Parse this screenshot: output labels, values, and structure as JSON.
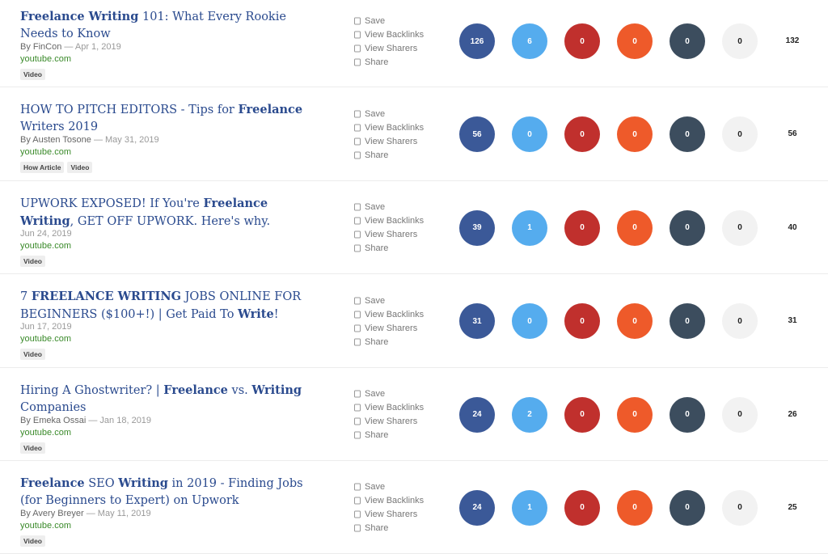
{
  "actions": [
    "Save",
    "View Backlinks",
    "View Sharers",
    "Share"
  ],
  "share_colors": [
    "#3b5998",
    "#55acee",
    "#c0302d",
    "#ee5a2a",
    "#3c4d5e",
    "#f2f2f2"
  ],
  "rows": [
    {
      "title": [
        {
          "text": "Freelance Writing",
          "bold": true
        },
        {
          "text": " 101: What Every Rookie Needs to Know",
          "bold": false
        }
      ],
      "author": "By FinCon",
      "date": "— Apr 1, 2019",
      "domain": "youtube.com",
      "tags": [
        "Video"
      ],
      "counts": [
        126,
        6,
        0,
        0,
        0,
        0
      ],
      "total": 132
    },
    {
      "title": [
        {
          "text": "HOW TO PITCH EDITORS - Tips for ",
          "bold": false
        },
        {
          "text": "Freelance",
          "bold": true
        },
        {
          "text": " Writers 2019",
          "bold": false
        }
      ],
      "author": "By Austen Tosone",
      "date": "— May 31, 2019",
      "domain": "youtube.com",
      "tags": [
        "How Article",
        "Video"
      ],
      "counts": [
        56,
        0,
        0,
        0,
        0,
        0
      ],
      "total": 56
    },
    {
      "title": [
        {
          "text": "UPWORK EXPOSED! If You're ",
          "bold": false
        },
        {
          "text": "Freelance Writing",
          "bold": true
        },
        {
          "text": ", GET OFF UPWORK. Here's why.",
          "bold": false
        }
      ],
      "author": null,
      "date": "Jun 24, 2019",
      "domain": "youtube.com",
      "tags": [
        "Video"
      ],
      "counts": [
        39,
        1,
        0,
        0,
        0,
        0
      ],
      "total": 40
    },
    {
      "title": [
        {
          "text": "7 ",
          "bold": false
        },
        {
          "text": "FREELANCE WRITING",
          "bold": true
        },
        {
          "text": " JOBS ONLINE FOR BEGINNERS ($100+!) | Get Paid To ",
          "bold": false
        },
        {
          "text": "Write",
          "bold": true
        },
        {
          "text": "!",
          "bold": false
        }
      ],
      "author": null,
      "date": "Jun 17, 2019",
      "domain": "youtube.com",
      "tags": [
        "Video"
      ],
      "counts": [
        31,
        0,
        0,
        0,
        0,
        0
      ],
      "total": 31
    },
    {
      "title": [
        {
          "text": "Hiring A Ghostwriter? | ",
          "bold": false
        },
        {
          "text": "Freelance",
          "bold": true
        },
        {
          "text": " vs. ",
          "bold": false
        },
        {
          "text": "Writing",
          "bold": true
        },
        {
          "text": " Companies",
          "bold": false
        }
      ],
      "author": "By Emeka Ossai",
      "date": "— Jan 18, 2019",
      "domain": "youtube.com",
      "tags": [
        "Video"
      ],
      "counts": [
        24,
        2,
        0,
        0,
        0,
        0
      ],
      "total": 26
    },
    {
      "title": [
        {
          "text": "Freelance",
          "bold": true
        },
        {
          "text": " SEO ",
          "bold": false
        },
        {
          "text": "Writing",
          "bold": true
        },
        {
          "text": " in 2019 - Finding Jobs (for Beginners to Expert) on Upwork",
          "bold": false
        }
      ],
      "author": "By Avery Breyer",
      "date": "— May 11, 2019",
      "domain": "youtube.com",
      "tags": [
        "Video"
      ],
      "counts": [
        24,
        1,
        0,
        0,
        0,
        0
      ],
      "total": 25
    }
  ]
}
